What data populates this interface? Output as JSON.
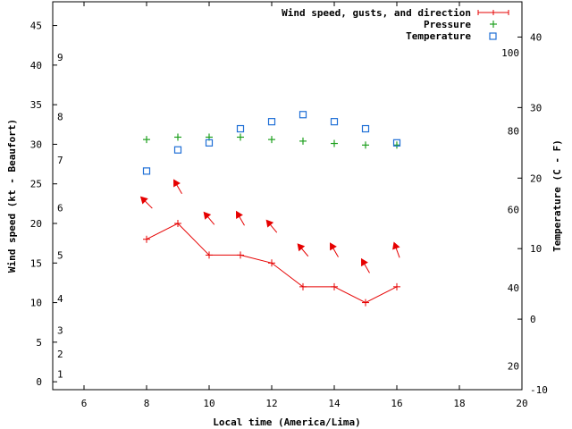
{
  "chart_data": {
    "type": "line",
    "title": "",
    "x": [
      8,
      9,
      10,
      11,
      12,
      13,
      14,
      15,
      16
    ],
    "xlabel": "Local time (America/Lima)",
    "xlim": [
      5,
      20
    ],
    "x_ticks": [
      "6",
      "8",
      "10",
      "12",
      "14",
      "16",
      "18",
      "20"
    ],
    "y_left": {
      "label": "Wind speed (kt - Beaufort)",
      "lim": [
        -1,
        48
      ],
      "ticks": [
        "0",
        "5",
        "10",
        "15",
        "20",
        "25",
        "30",
        "35",
        "40",
        "45"
      ],
      "beaufort_labels": [
        "1",
        "2",
        "3",
        "4",
        "5",
        "6",
        "7",
        "8",
        "9"
      ]
    },
    "y_right": {
      "label": "Temperature (C - F)",
      "lim": [
        -10,
        45
      ],
      "ticks_c": [
        "-10",
        "0",
        "10",
        "20",
        "30",
        "40"
      ],
      "ticks_f": [
        "20",
        "40",
        "60",
        "80",
        "100"
      ]
    },
    "series": [
      {
        "name": "Wind speed, gusts, and direction",
        "color": "#e60000",
        "axis": "left",
        "values": [
          18,
          20,
          16,
          16,
          15,
          12,
          12,
          10,
          12
        ],
        "direction_arrows": true
      },
      {
        "name": "Pressure",
        "color": "#1fa01f",
        "axis": "left",
        "values": [
          30.6,
          30.9,
          30.9,
          30.9,
          30.6,
          30.4,
          30.1,
          29.9,
          29.9
        ]
      },
      {
        "name": "Temperature",
        "color": "#1f6fd6",
        "axis": "right",
        "values": [
          21,
          24,
          25,
          27,
          28,
          29,
          28,
          27,
          25
        ]
      }
    ],
    "legend_position": "top-right",
    "grid": false
  }
}
